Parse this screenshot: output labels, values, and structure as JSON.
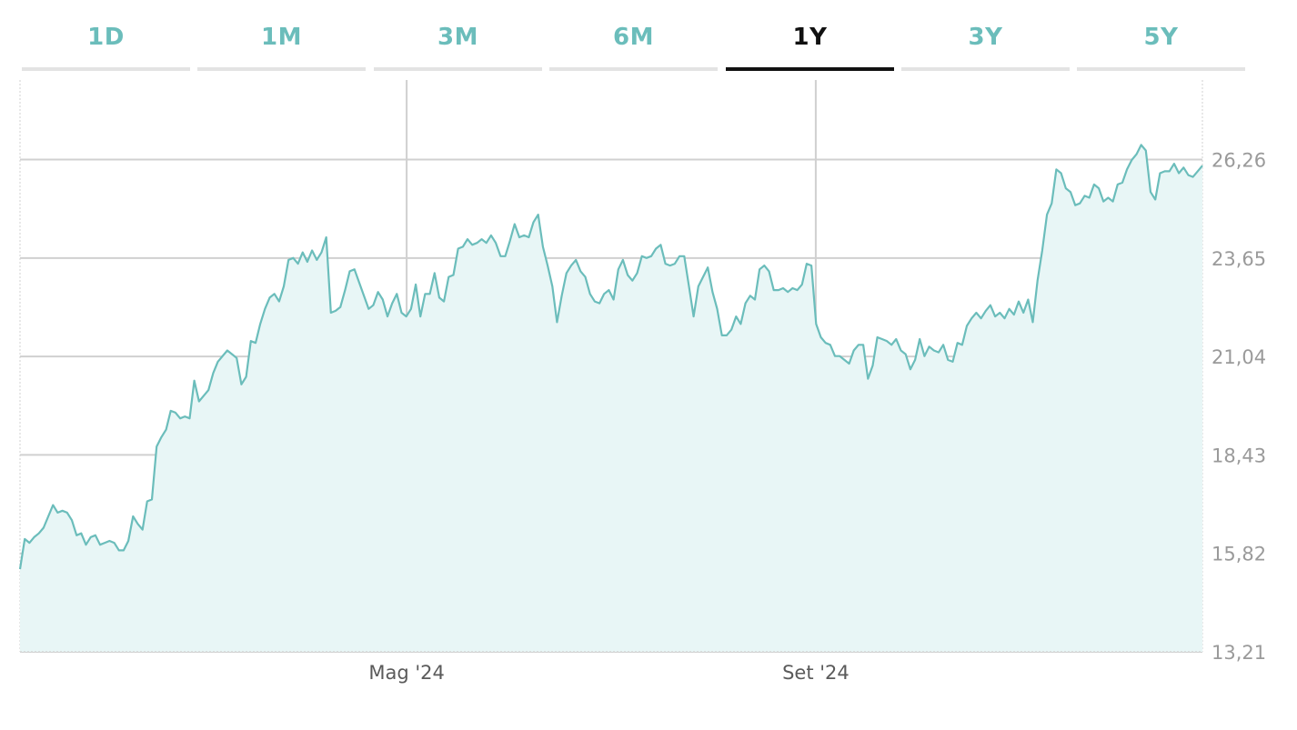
{
  "tabs": [
    {
      "label": "1D",
      "active": false
    },
    {
      "label": "1M",
      "active": false
    },
    {
      "label": "3M",
      "active": false
    },
    {
      "label": "6M",
      "active": false
    },
    {
      "label": "1Y",
      "active": true
    },
    {
      "label": "3Y",
      "active": false
    },
    {
      "label": "5Y",
      "active": false
    }
  ],
  "colors": {
    "accent": "#6bbdbb",
    "line": "#6bbdbb",
    "fill": "#e8f6f6",
    "active_tab": "#111111",
    "grid": "#d0d0d0"
  },
  "chart_data": {
    "type": "area",
    "title": "",
    "xlabel": "",
    "ylabel": "",
    "grid": true,
    "ylim": [
      13.21,
      28.37
    ],
    "y_ticks": [
      {
        "value": 26.26,
        "label": "26,26"
      },
      {
        "value": 23.65,
        "label": "23,65"
      },
      {
        "value": 21.04,
        "label": "21,04"
      },
      {
        "value": 18.43,
        "label": "18,43"
      },
      {
        "value": 15.82,
        "label": "15,82"
      },
      {
        "value": 13.21,
        "label": "13,21"
      }
    ],
    "x_ticks": [
      {
        "position": 0.327,
        "label": "Mag '24"
      },
      {
        "position": 0.673,
        "label": "Set '24"
      }
    ],
    "y_axis_side": "right",
    "series": [
      {
        "values": [
          15.4,
          16.2,
          16.1,
          16.25,
          16.35,
          16.5,
          16.8,
          17.1,
          16.9,
          16.95,
          16.9,
          16.7,
          16.3,
          16.35,
          16.05,
          16.25,
          16.3,
          16.05,
          16.1,
          16.15,
          16.1,
          15.9,
          15.9,
          16.15,
          16.8,
          16.6,
          16.45,
          17.2,
          17.25,
          18.65,
          18.9,
          19.1,
          19.6,
          19.55,
          19.4,
          19.45,
          19.4,
          20.4,
          19.85,
          20.0,
          20.15,
          20.6,
          20.9,
          21.05,
          21.2,
          21.1,
          21.0,
          20.3,
          20.5,
          21.45,
          21.4,
          21.9,
          22.3,
          22.6,
          22.7,
          22.5,
          22.9,
          23.6,
          23.65,
          23.5,
          23.8,
          23.55,
          23.85,
          23.6,
          23.8,
          24.2,
          22.2,
          22.25,
          22.35,
          22.8,
          23.3,
          23.35,
          23.0,
          22.65,
          22.3,
          22.4,
          22.75,
          22.55,
          22.1,
          22.45,
          22.7,
          22.2,
          22.1,
          22.3,
          22.95,
          22.1,
          22.7,
          22.7,
          23.25,
          22.6,
          22.5,
          23.15,
          23.2,
          23.9,
          23.95,
          24.15,
          24.0,
          24.05,
          24.15,
          24.05,
          24.25,
          24.05,
          23.7,
          23.7,
          24.1,
          24.55,
          24.2,
          24.25,
          24.2,
          24.6,
          24.8,
          23.95,
          23.45,
          22.9,
          21.95,
          22.65,
          23.25,
          23.45,
          23.6,
          23.3,
          23.15,
          22.7,
          22.5,
          22.45,
          22.7,
          22.8,
          22.55,
          23.35,
          23.6,
          23.2,
          23.05,
          23.25,
          23.7,
          23.65,
          23.7,
          23.9,
          24.0,
          23.5,
          23.45,
          23.5,
          23.7,
          23.7,
          22.9,
          22.1,
          22.9,
          23.15,
          23.4,
          22.75,
          22.3,
          21.6,
          21.6,
          21.75,
          22.1,
          21.9,
          22.45,
          22.65,
          22.55,
          23.35,
          23.45,
          23.3,
          22.8,
          22.8,
          22.85,
          22.75,
          22.85,
          22.8,
          22.95,
          23.5,
          23.45,
          21.9,
          21.55,
          21.4,
          21.35,
          21.05,
          21.05,
          20.95,
          20.85,
          21.2,
          21.35,
          21.35,
          20.45,
          20.8,
          21.55,
          21.5,
          21.45,
          21.35,
          21.5,
          21.2,
          21.1,
          20.7,
          20.95,
          21.5,
          21.05,
          21.3,
          21.2,
          21.15,
          21.35,
          20.95,
          20.9,
          21.4,
          21.35,
          21.85,
          22.05,
          22.2,
          22.05,
          22.25,
          22.4,
          22.1,
          22.2,
          22.05,
          22.3,
          22.15,
          22.5,
          22.2,
          22.55,
          21.95,
          23.05,
          23.85,
          24.8,
          25.1,
          26.0,
          25.9,
          25.5,
          25.4,
          25.05,
          25.1,
          25.3,
          25.25,
          25.6,
          25.5,
          25.15,
          25.25,
          25.15,
          25.6,
          25.65,
          26.0,
          26.25,
          26.4,
          26.65,
          26.5,
          25.4,
          25.2,
          25.9,
          25.95,
          25.95,
          26.15,
          25.9,
          26.05,
          25.85,
          25.8,
          25.95,
          26.1
        ]
      }
    ]
  }
}
